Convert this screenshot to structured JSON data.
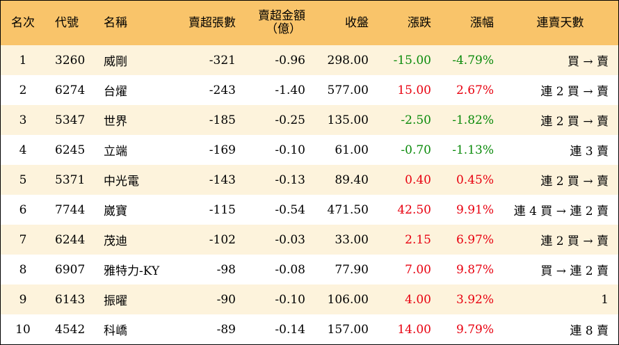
{
  "colors": {
    "header_bg": "#f9c46a",
    "row_alt_bg": "#fdf3dc",
    "up": "#e8000f",
    "down": "#0a8a0a"
  },
  "headers": {
    "rank": "名次",
    "code": "代號",
    "name": "名稱",
    "net_sell_lots": "賣超張數",
    "net_sell_amount_line1": "賣超金額",
    "net_sell_amount_line2": "（億）",
    "close": "收盤",
    "change": "漲跌",
    "change_pct": "漲幅",
    "streak": "連賣天數"
  },
  "rows": [
    {
      "rank": "1",
      "code": "3260",
      "name": "威剛",
      "lots": "-321",
      "amount": "-0.96",
      "close": "298.00",
      "change": "-15.00",
      "pct": "-4.79%",
      "dir": "down",
      "streak": "買 → 賣"
    },
    {
      "rank": "2",
      "code": "6274",
      "name": "台燿",
      "lots": "-243",
      "amount": "-1.40",
      "close": "577.00",
      "change": "15.00",
      "pct": "2.67%",
      "dir": "up",
      "streak": "連 2 買 → 賣"
    },
    {
      "rank": "3",
      "code": "5347",
      "name": "世界",
      "lots": "-185",
      "amount": "-0.25",
      "close": "135.00",
      "change": "-2.50",
      "pct": "-1.82%",
      "dir": "down",
      "streak": "連 2 買 → 賣"
    },
    {
      "rank": "4",
      "code": "6245",
      "name": "立端",
      "lots": "-169",
      "amount": "-0.10",
      "close": "61.00",
      "change": "-0.70",
      "pct": "-1.13%",
      "dir": "down",
      "streak": "連 3 賣"
    },
    {
      "rank": "5",
      "code": "5371",
      "name": "中光電",
      "lots": "-143",
      "amount": "-0.13",
      "close": "89.40",
      "change": "0.40",
      "pct": "0.45%",
      "dir": "up",
      "streak": "連 2 買 → 賣"
    },
    {
      "rank": "6",
      "code": "7744",
      "name": "崴寶",
      "lots": "-115",
      "amount": "-0.54",
      "close": "471.50",
      "change": "42.50",
      "pct": "9.91%",
      "dir": "up",
      "streak": "連 4 買 → 連 2 賣"
    },
    {
      "rank": "7",
      "code": "6244",
      "name": "茂迪",
      "lots": "-102",
      "amount": "-0.03",
      "close": "33.00",
      "change": "2.15",
      "pct": "6.97%",
      "dir": "up",
      "streak": "連 2 買 → 賣"
    },
    {
      "rank": "8",
      "code": "6907",
      "name": "雅特力-KY",
      "lots": "-98",
      "amount": "-0.08",
      "close": "77.90",
      "change": "7.00",
      "pct": "9.87%",
      "dir": "up",
      "streak": "買 → 連 2 賣"
    },
    {
      "rank": "9",
      "code": "6143",
      "name": "振曜",
      "lots": "-90",
      "amount": "-0.10",
      "close": "106.00",
      "change": "4.00",
      "pct": "3.92%",
      "dir": "up",
      "streak": "1"
    },
    {
      "rank": "10",
      "code": "4542",
      "name": "科嶠",
      "lots": "-89",
      "amount": "-0.14",
      "close": "157.00",
      "change": "14.00",
      "pct": "9.79%",
      "dir": "up",
      "streak": "連 8 賣"
    }
  ]
}
